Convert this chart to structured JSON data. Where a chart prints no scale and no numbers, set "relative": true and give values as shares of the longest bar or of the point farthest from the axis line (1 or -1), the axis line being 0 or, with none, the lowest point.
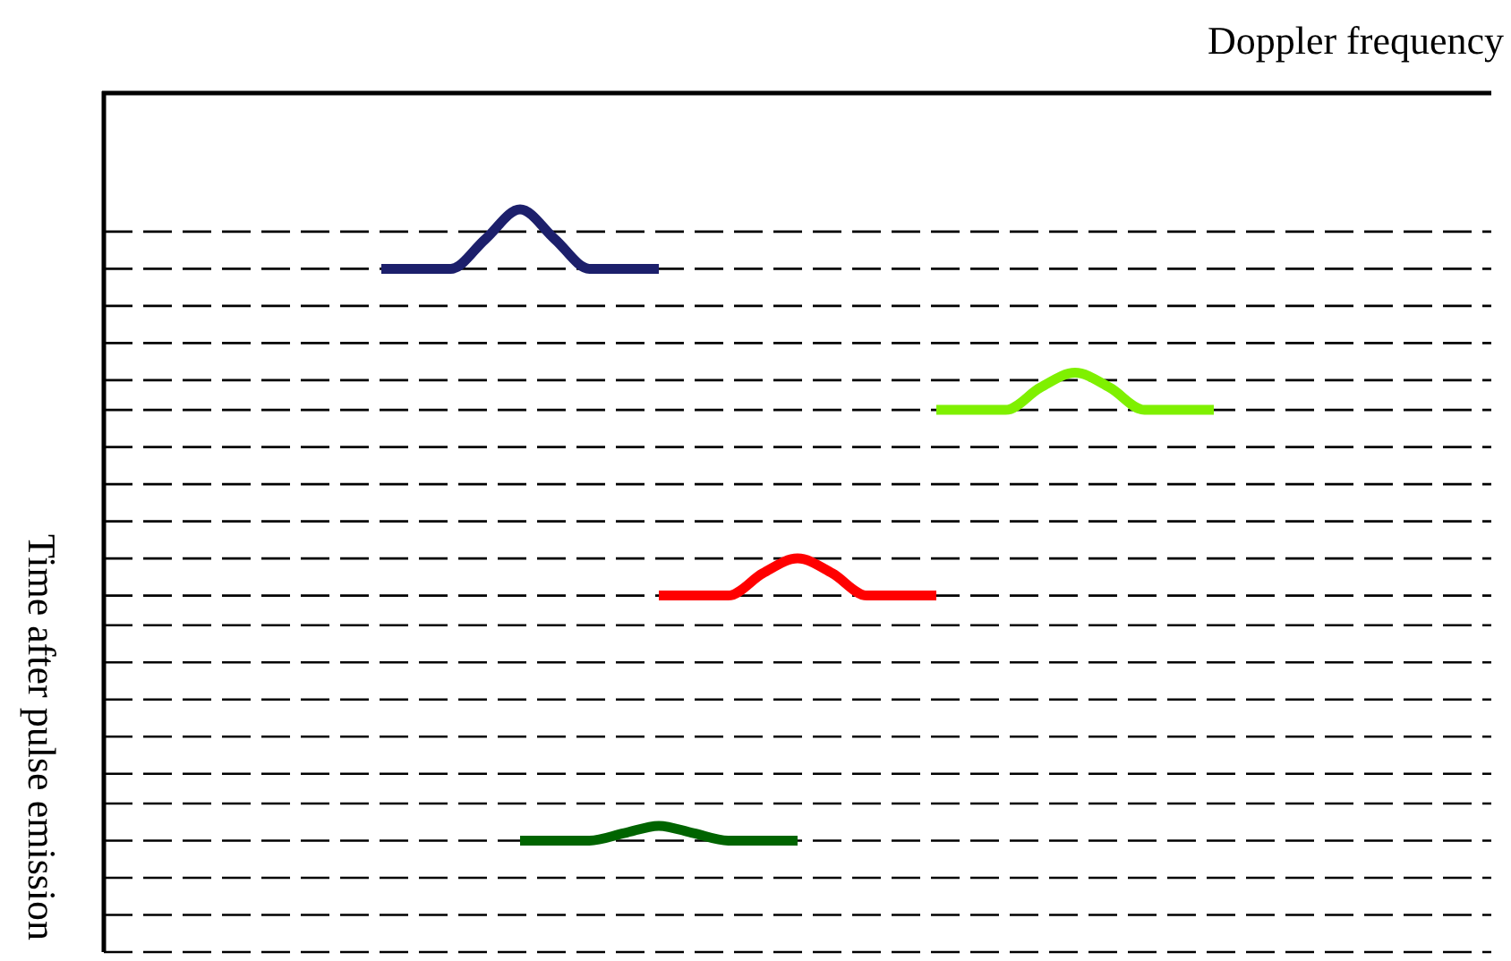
{
  "chart_data": {
    "type": "line",
    "relative": true,
    "xlabel": "Doppler frequency",
    "ylabel": "Time after pulse emission",
    "line_style": "solid",
    "marker": "none",
    "categories": [
      null,
      null,
      null,
      null,
      null,
      null,
      null,
      null,
      null,
      null,
      null,
      null,
      null,
      null,
      null,
      null,
      null,
      null,
      null,
      null,
      null,
      null,
      null,
      null,
      null,
      null,
      null,
      null,
      null,
      null,
      null,
      null,
      null,
      null,
      null,
      null,
      null,
      null,
      null,
      null,
      null
    ],
    "series": [
      {
        "color": "#1c1f6b",
        "values": [
          null,
          null,
          null,
          null,
          null,
          null,
          null,
          null,
          0.92,
          0.92,
          0.92,
          0.96,
          1,
          0.96,
          0.92,
          0.92,
          0.92,
          null,
          null,
          null,
          null,
          null,
          null,
          null,
          null,
          null,
          null,
          null,
          null,
          null,
          null,
          null,
          null,
          null,
          null,
          null,
          null,
          null,
          null,
          null,
          null
        ]
      },
      {
        "color": "#7ff000",
        "values": [
          null,
          null,
          null,
          null,
          null,
          null,
          null,
          null,
          null,
          null,
          null,
          null,
          null,
          null,
          null,
          null,
          null,
          null,
          null,
          null,
          null,
          null,
          null,
          null,
          0.73,
          0.73,
          0.73,
          0.76,
          0.78,
          0.76,
          0.73,
          0.73,
          0.73,
          null,
          null,
          null,
          null,
          null,
          null,
          null,
          null
        ]
      },
      {
        "color": "#ff0000",
        "values": [
          null,
          null,
          null,
          null,
          null,
          null,
          null,
          null,
          null,
          null,
          null,
          null,
          null,
          null,
          null,
          null,
          0.48,
          0.48,
          0.48,
          0.51,
          0.53,
          0.51,
          0.48,
          0.48,
          0.48,
          null,
          null,
          null,
          null,
          null,
          null,
          null,
          null,
          null,
          null,
          null,
          null,
          null,
          null,
          null,
          null
        ]
      },
      {
        "color": "#006400",
        "values": [
          null,
          null,
          null,
          null,
          null,
          null,
          null,
          null,
          null,
          null,
          null,
          null,
          0.15,
          0.15,
          0.15,
          0.16,
          0.17,
          0.16,
          0.15,
          0.15,
          0.15,
          null,
          null,
          null,
          null,
          null,
          null,
          null,
          null,
          null,
          null,
          null,
          null,
          null,
          null,
          null,
          null,
          null,
          null,
          null,
          null
        ]
      }
    ],
    "ref_lines": [
      {
        "axis": "y",
        "value": 0.97,
        "line_style": "dashed",
        "color": "#000000"
      },
      {
        "axis": "y",
        "value": 0.92,
        "line_style": "dashed",
        "color": "#000000"
      },
      {
        "axis": "y",
        "value": 0.87,
        "line_style": "dashed",
        "color": "#000000"
      },
      {
        "axis": "y",
        "value": 0.82,
        "line_style": "dashed",
        "color": "#000000"
      },
      {
        "axis": "y",
        "value": 0.77,
        "line_style": "dashed",
        "color": "#000000"
      },
      {
        "axis": "y",
        "value": 0.73,
        "line_style": "dashed",
        "color": "#000000"
      },
      {
        "axis": "y",
        "value": 0.68,
        "line_style": "dashed",
        "color": "#000000"
      },
      {
        "axis": "y",
        "value": 0.63,
        "line_style": "dashed",
        "color": "#000000"
      },
      {
        "axis": "y",
        "value": 0.58,
        "line_style": "dashed",
        "color": "#000000"
      },
      {
        "axis": "y",
        "value": 0.53,
        "line_style": "dashed",
        "color": "#000000"
      },
      {
        "axis": "y",
        "value": 0.48,
        "line_style": "dashed",
        "color": "#000000"
      },
      {
        "axis": "y",
        "value": 0.44,
        "line_style": "dashed",
        "color": "#000000"
      },
      {
        "axis": "y",
        "value": 0.39,
        "line_style": "dashed",
        "color": "#000000"
      },
      {
        "axis": "y",
        "value": 0.34,
        "line_style": "dashed",
        "color": "#000000"
      },
      {
        "axis": "y",
        "value": 0.29,
        "line_style": "dashed",
        "color": "#000000"
      },
      {
        "axis": "y",
        "value": 0.24,
        "line_style": "dashed",
        "color": "#000000"
      },
      {
        "axis": "y",
        "value": 0.2,
        "line_style": "dashed",
        "color": "#000000"
      },
      {
        "axis": "y",
        "value": 0.15,
        "line_style": "dashed",
        "color": "#000000"
      },
      {
        "axis": "y",
        "value": 0.1,
        "line_style": "dashed",
        "color": "#000000"
      },
      {
        "axis": "y",
        "value": 0.05,
        "line_style": "dashed",
        "color": "#000000"
      },
      {
        "axis": "y",
        "value": 0,
        "line_style": "dashed",
        "color": "#000000"
      }
    ]
  }
}
